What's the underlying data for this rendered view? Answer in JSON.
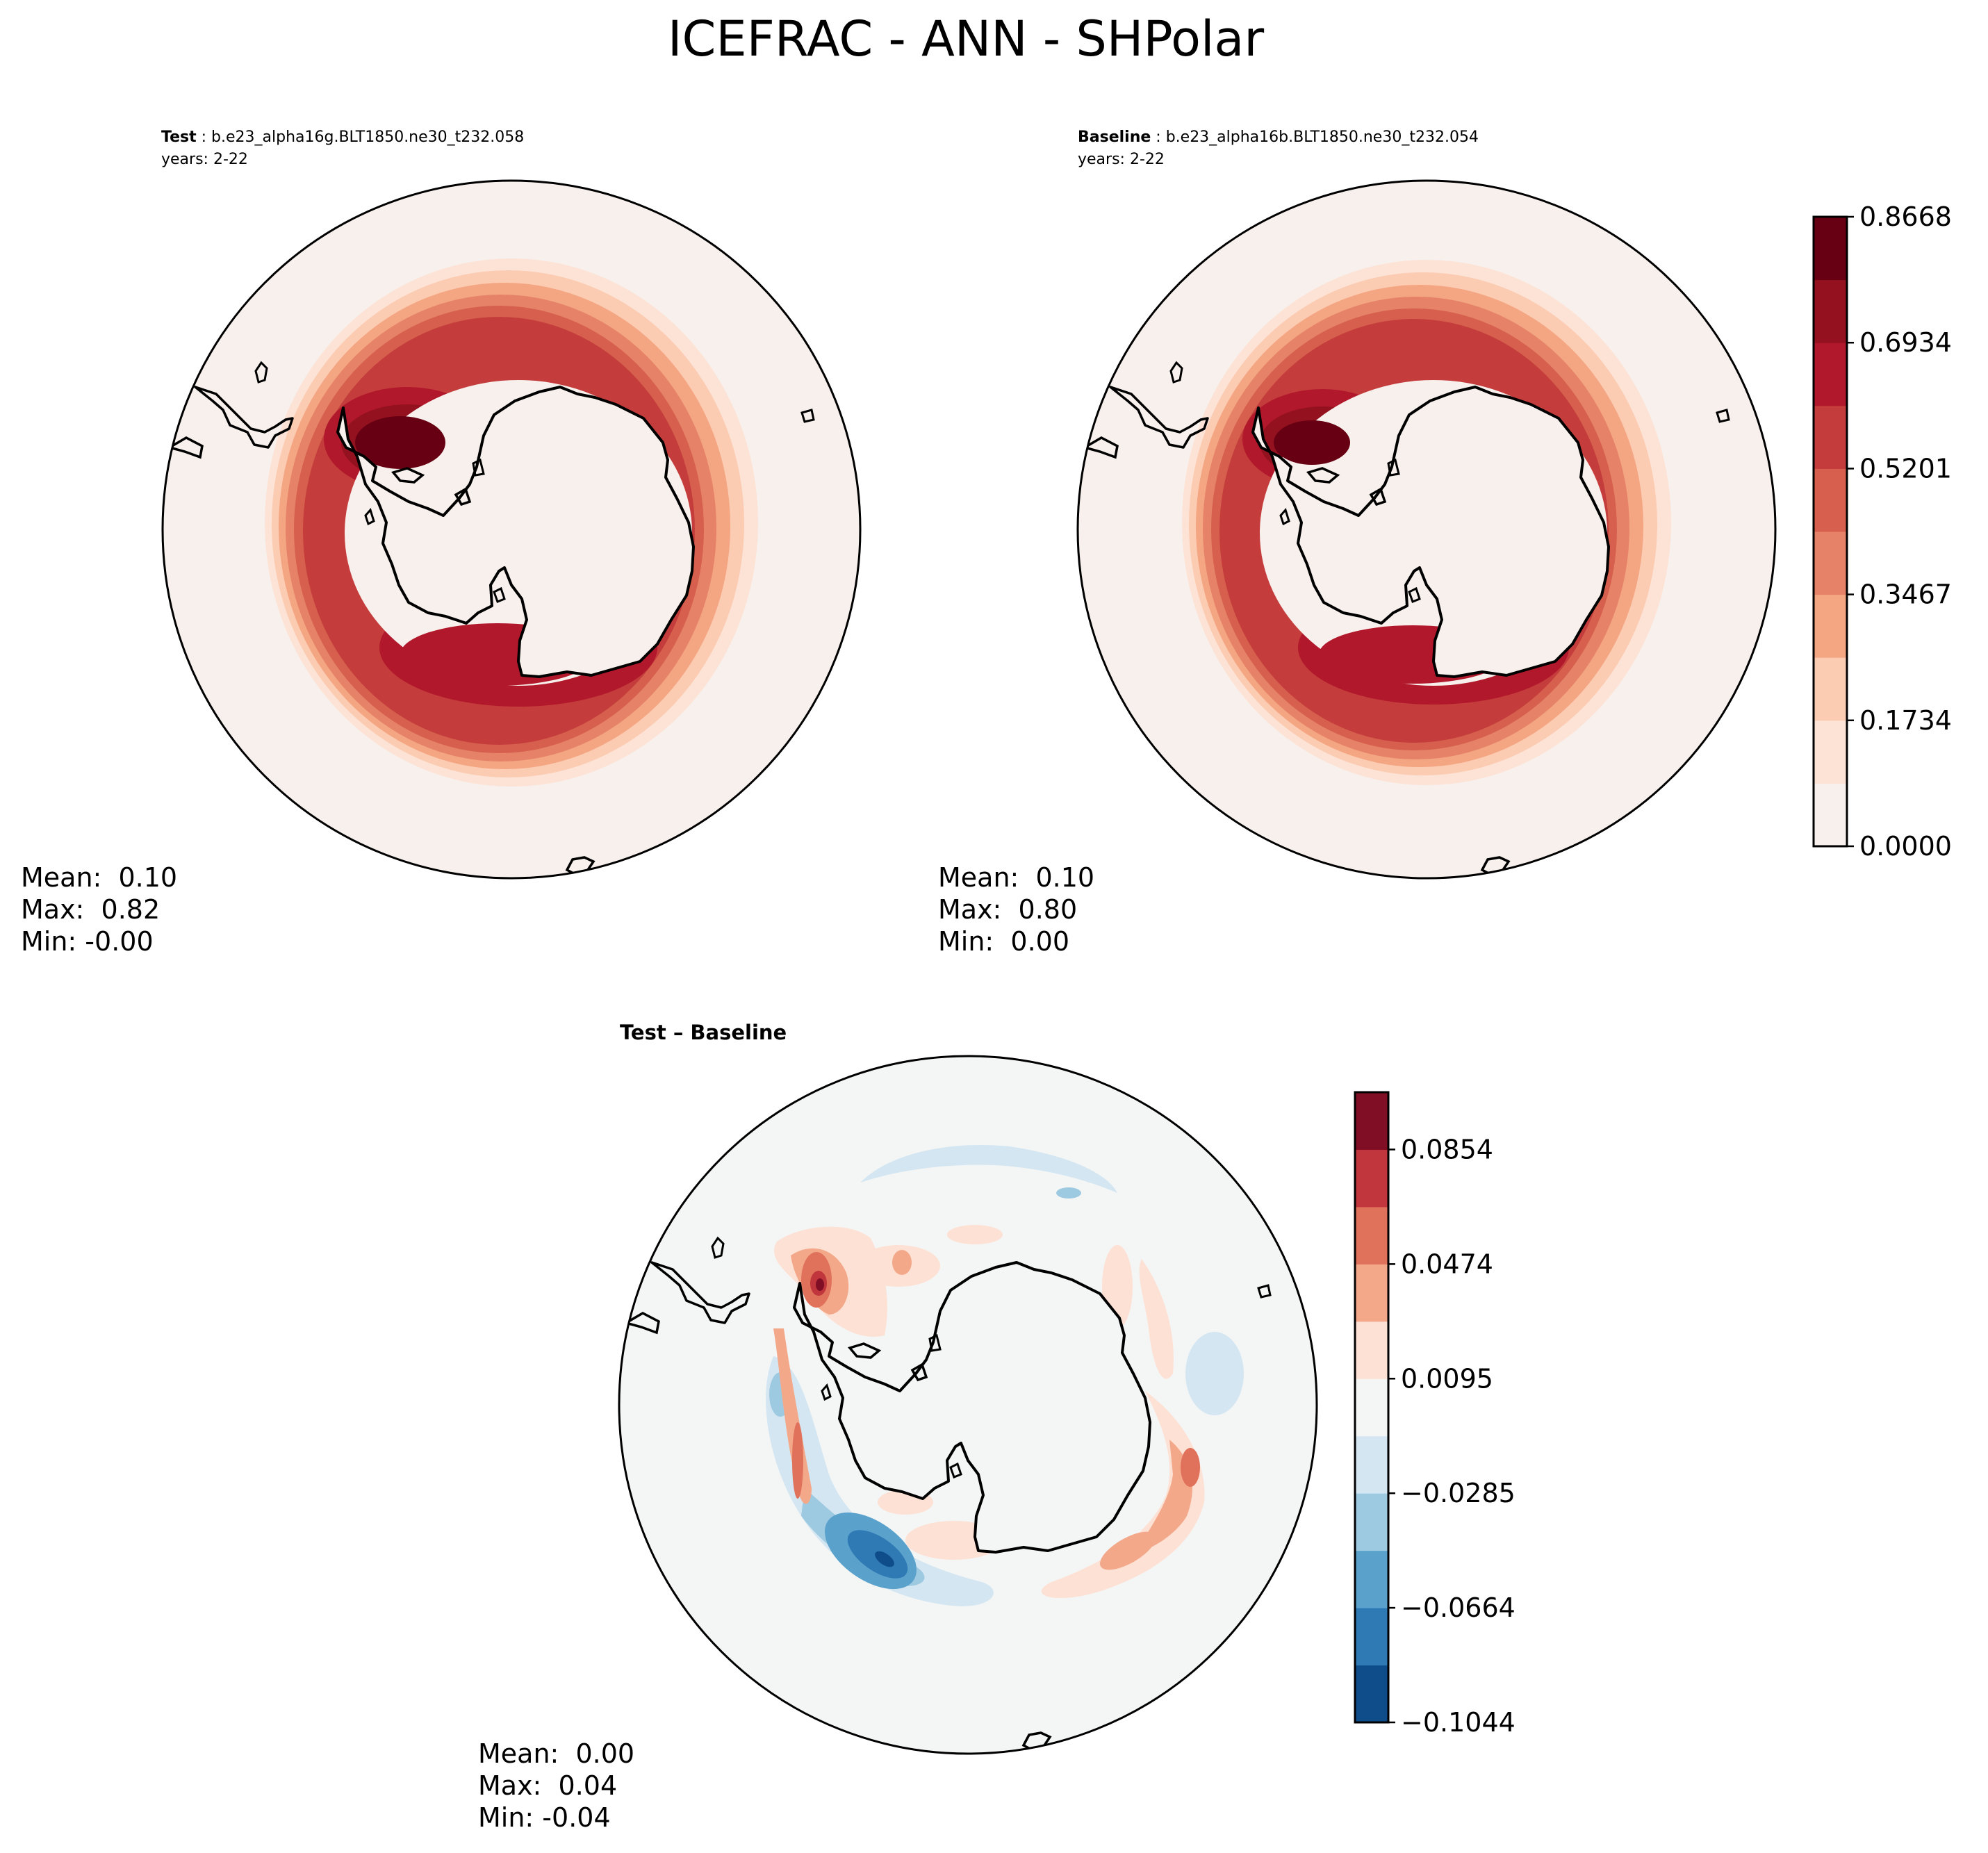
{
  "figure": {
    "title": "ICEFRAC - ANN - SHPolar"
  },
  "panels": [
    {
      "id": "test",
      "label_bold": "Test",
      "label_rest": " : b.e23_alpha16g.BLT1850.ne30_t232.058",
      "years": "years: 2-22",
      "stats": {
        "mean": "Mean:  0.10",
        "max": "Max:  0.82",
        "min": "Min: -0.00"
      }
    },
    {
      "id": "baseline",
      "label_bold": "Baseline",
      "label_rest": " : b.e23_alpha16b.BLT1850.ne30_t232.054",
      "years": "years: 2-22",
      "stats": {
        "mean": "Mean:  0.10",
        "max": "Max:  0.80",
        "min": "Min:  0.00"
      }
    },
    {
      "id": "diff",
      "label_bold": "Test – Baseline",
      "stats": {
        "mean": "Mean:  0.00",
        "max": "Max:  0.04",
        "min": "Min: -0.04"
      }
    }
  ],
  "colorbars": {
    "main": {
      "ticks": [
        "0.0000",
        "0.1734",
        "0.3467",
        "0.5201",
        "0.6934",
        "0.8668"
      ],
      "tick_levels": [
        0,
        2,
        4,
        6,
        8,
        10
      ],
      "colors": [
        "#f7f0ec",
        "#fde3d6",
        "#fbcbb2",
        "#f4a582",
        "#e58267",
        "#d6604d",
        "#c43d3c",
        "#b2182b",
        "#94111f",
        "#670013"
      ]
    },
    "diff": {
      "ticks": [
        "−0.1044",
        "−0.0664",
        "−0.0285",
        "0.0095",
        "0.0474",
        "0.0854"
      ],
      "tick_levels": [
        0,
        2,
        4,
        6,
        8,
        10
      ],
      "colors": [
        "#0f4d8a",
        "#2f79b5",
        "#5aa2cc",
        "#9ecae1",
        "#d4e6f1",
        "#f4f6f6",
        "#fde1d4",
        "#f4a88a",
        "#e0715a",
        "#c0363c",
        "#800f26"
      ]
    }
  },
  "colors": {
    "ocean_main": "#f7f0ec",
    "ocean_diff": "#f4f6f6",
    "coast": "#000000"
  }
}
